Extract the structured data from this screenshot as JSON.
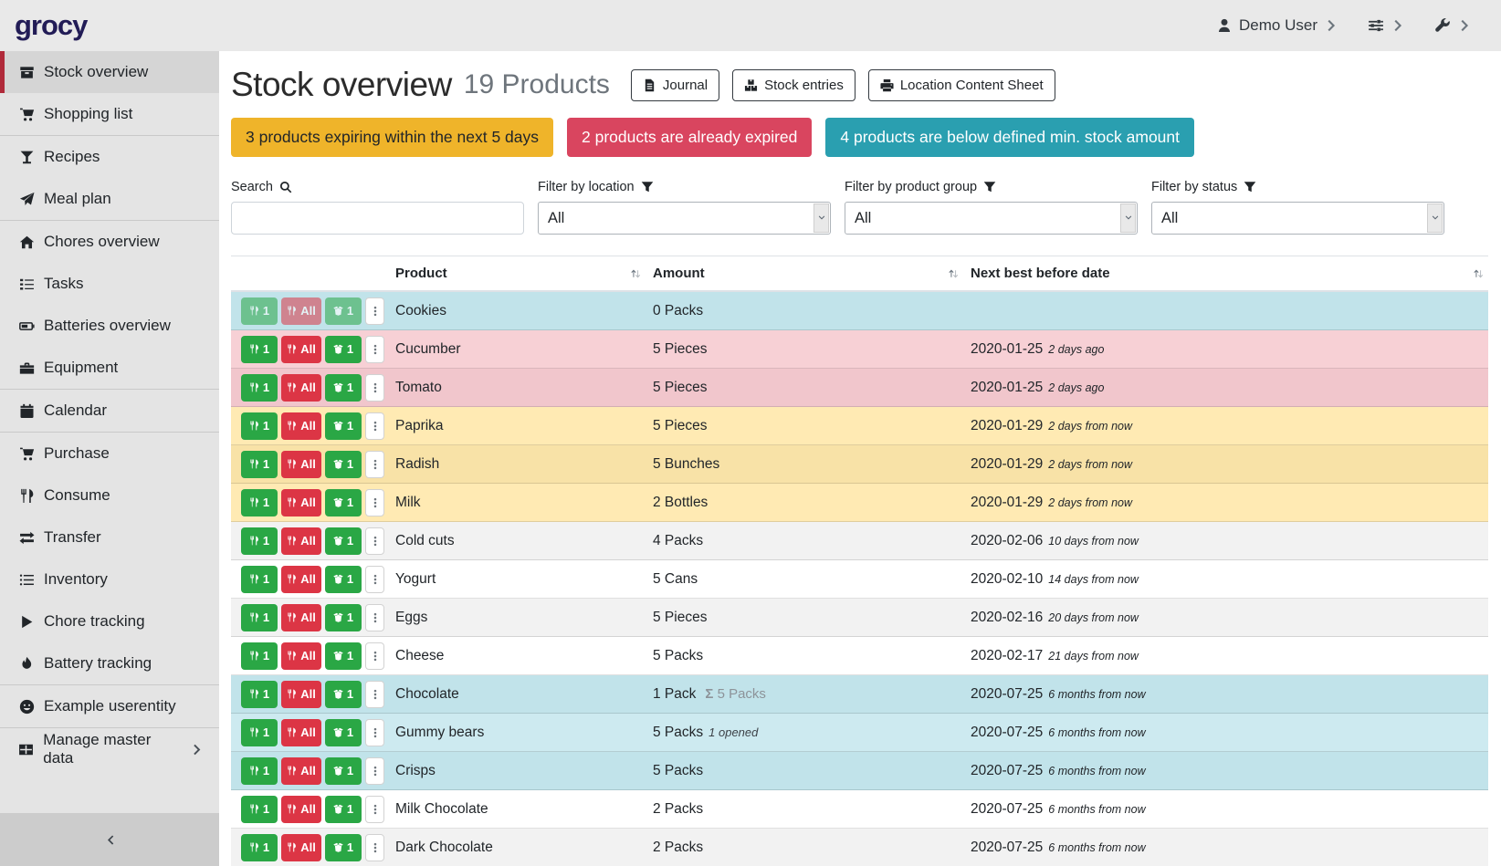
{
  "header": {
    "logo": "grocy",
    "user": {
      "name": "Demo User",
      "icon": "user"
    },
    "menus": [
      {
        "name": "settings-menu",
        "icon": "sliders"
      },
      {
        "name": "admin-menu",
        "icon": "wrench"
      }
    ],
    "chevron_icon": "chevron-right"
  },
  "sidebar": {
    "items": [
      {
        "label": "Stock overview",
        "icon": "box",
        "active": true
      },
      {
        "label": "Shopping list",
        "icon": "cart"
      },
      {
        "label": "Recipes",
        "icon": "cocktail",
        "divider_before": true
      },
      {
        "label": "Meal plan",
        "icon": "paper-plane"
      },
      {
        "label": "Chores overview",
        "icon": "home",
        "divider_before": true
      },
      {
        "label": "Tasks",
        "icon": "tasks"
      },
      {
        "label": "Batteries overview",
        "icon": "battery"
      },
      {
        "label": "Equipment",
        "icon": "toolbox"
      },
      {
        "label": "Calendar",
        "icon": "calendar",
        "divider_before": true
      },
      {
        "label": "Purchase",
        "icon": "cart",
        "divider_before": true
      },
      {
        "label": "Consume",
        "icon": "utensils"
      },
      {
        "label": "Transfer",
        "icon": "exchange"
      },
      {
        "label": "Inventory",
        "icon": "list"
      },
      {
        "label": "Chore tracking",
        "icon": "play"
      },
      {
        "label": "Battery tracking",
        "icon": "flame"
      },
      {
        "label": "Example userentity",
        "icon": "smiley",
        "divider_before": true
      },
      {
        "label": "Manage master data",
        "icon": "table",
        "divider_before": true,
        "chevron": true
      }
    ],
    "collapse_icon": "chevron-left"
  },
  "page": {
    "title": "Stock overview",
    "subtitle": "19 Products",
    "toolbar": [
      {
        "label": "Journal",
        "icon": "file"
      },
      {
        "label": "Stock entries",
        "icon": "boxes"
      },
      {
        "label": "Location Content Sheet",
        "icon": "print"
      }
    ],
    "alerts": [
      {
        "name": "expiring",
        "text": "3 products expiring within the next 5 days",
        "color": "#efb42a",
        "text_color": "#212529"
      },
      {
        "name": "expired",
        "text": "2 products are already expired",
        "color": "#d9455f",
        "text_color": "#ffffff"
      },
      {
        "name": "below-min-stock",
        "text": "4 products are below defined min. stock amount",
        "color": "#2a9fb0",
        "text_color": "#ffffff"
      }
    ],
    "filters": [
      {
        "label": "Search",
        "icon": "search",
        "type": "input",
        "value": "",
        "placeholder": ""
      },
      {
        "label": "Filter by location",
        "icon": "funnel",
        "type": "select",
        "value": "All"
      },
      {
        "label": "Filter by product group",
        "icon": "funnel",
        "type": "select",
        "value": "All"
      },
      {
        "label": "Filter by status",
        "icon": "funnel",
        "type": "select",
        "value": "All"
      }
    ]
  },
  "table": {
    "columns": [
      "Product",
      "Amount",
      "Next best before date"
    ],
    "sort_icon": "sort",
    "sum_symbol": "Σ",
    "row_buttons": [
      {
        "name": "consume-one-button",
        "label": "1",
        "icon": "utensils",
        "style": "btn-green"
      },
      {
        "name": "consume-all-button",
        "label": "All",
        "icon": "utensils",
        "style": "btn-red"
      },
      {
        "name": "open-one-button",
        "label": "1",
        "icon": "box-open",
        "style": "btn-green"
      },
      {
        "name": "row-menu-button",
        "label": "",
        "icon": "ellipsis-v",
        "style": "btn-white"
      }
    ],
    "rows": [
      {
        "product": "Cookies",
        "amount": "0 Packs",
        "date": "",
        "relative": "",
        "status": "info",
        "muted_buttons": true
      },
      {
        "product": "Cucumber",
        "amount": "5 Pieces",
        "date": "2020-01-25",
        "relative": "2 days ago",
        "status": "danger"
      },
      {
        "product": "Tomato",
        "amount": "5 Pieces",
        "date": "2020-01-25",
        "relative": "2 days ago",
        "status": "danger"
      },
      {
        "product": "Paprika",
        "amount": "5 Pieces",
        "date": "2020-01-29",
        "relative": "2 days from now",
        "status": "warning"
      },
      {
        "product": "Radish",
        "amount": "5 Bunches",
        "date": "2020-01-29",
        "relative": "2 days from now",
        "status": "warning"
      },
      {
        "product": "Milk",
        "amount": "2 Bottles",
        "date": "2020-01-29",
        "relative": "2 days from now",
        "status": "warning"
      },
      {
        "product": "Cold cuts",
        "amount": "4 Packs",
        "date": "2020-02-06",
        "relative": "10 days from now",
        "status": "none"
      },
      {
        "product": "Yogurt",
        "amount": "5 Cans",
        "date": "2020-02-10",
        "relative": "14 days from now",
        "status": "none"
      },
      {
        "product": "Eggs",
        "amount": "5 Pieces",
        "date": "2020-02-16",
        "relative": "20 days from now",
        "status": "none"
      },
      {
        "product": "Cheese",
        "amount": "5 Packs",
        "date": "2020-02-17",
        "relative": "21 days from now",
        "status": "none"
      },
      {
        "product": "Chocolate",
        "amount": "1 Pack",
        "amount_total": "5 Packs",
        "date": "2020-07-25",
        "relative": "6 months from now",
        "status": "info"
      },
      {
        "product": "Gummy bears",
        "amount": "5 Packs",
        "amount_opened": "1 opened",
        "date": "2020-07-25",
        "relative": "6 months from now",
        "status": "info"
      },
      {
        "product": "Crisps",
        "amount": "5 Packs",
        "date": "2020-07-25",
        "relative": "6 months from now",
        "status": "info"
      },
      {
        "product": "Milk Chocolate",
        "amount": "2 Packs",
        "date": "2020-07-25",
        "relative": "6 months from now",
        "status": "none"
      },
      {
        "product": "Dark Chocolate",
        "amount": "2 Packs",
        "date": "2020-07-25",
        "relative": "6 months from now",
        "status": "none"
      },
      {
        "product": "",
        "amount": "",
        "date": "",
        "relative": "",
        "status": "none",
        "partial": true
      }
    ]
  },
  "colors": {
    "topbar_bg": "#e9e9e9",
    "sidebar_bg": "#e4e4e4",
    "sidebar_active_bg": "#d5d5d5",
    "accent_red": "#b02a3a",
    "logo": "#221c56",
    "alert_warning": "#efb42a",
    "alert_danger": "#d9455f",
    "alert_info": "#2a9fb0",
    "row_info": "#c7e8ee",
    "row_danger": "#f5cbd1",
    "row_warning": "#ffeab3",
    "button_green": "#2aa745",
    "button_red": "#dc3545"
  }
}
